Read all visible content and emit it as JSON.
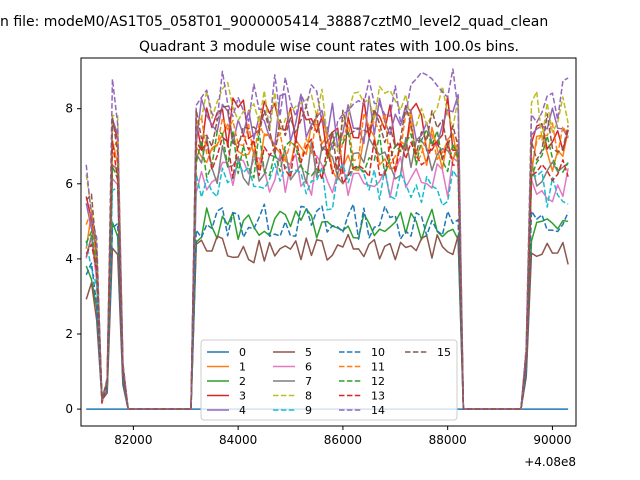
{
  "chart_data": {
    "type": "line",
    "suptitle": "n file: modeM0/AS1T05_058T01_9000005414_38887cztM0_level2_quad_clean",
    "title": "Quadrant 3 module wise count rates with 100.0s bins.",
    "xlabel": "",
    "ylabel": "",
    "xlim": [
      81000,
      90450
    ],
    "ylim": [
      -0.45,
      9.35
    ],
    "x_offset_label": "+4.08e8",
    "x_ticks": [
      82000,
      84000,
      86000,
      88000,
      90000
    ],
    "x_tick_labels": [
      "82000",
      "84000",
      "86000",
      "88000",
      "90000"
    ],
    "y_ticks": [
      0,
      2,
      4,
      6,
      8
    ],
    "y_tick_labels": [
      "0",
      "2",
      "4",
      "6",
      "8"
    ],
    "grid": false,
    "legend_position": "lower center",
    "legend_columns": 4,
    "segments": [
      {
        "start": 81100,
        "end": 81900,
        "on_start": 81100,
        "on_end": 81800,
        "dips": [
          81400
        ]
      },
      {
        "start": 81900,
        "end": 83200,
        "off": true
      },
      {
        "start": 83200,
        "end": 88200,
        "on_start": 83200,
        "on_end": 88200
      },
      {
        "start": 88200,
        "end": 89400,
        "off": true
      },
      {
        "start": 89400,
        "end": 90300,
        "on_start": 89500,
        "on_end": 90300
      }
    ],
    "series": [
      {
        "name": "0",
        "color": "#1f77b4",
        "dash": "solid",
        "level": 0.0
      },
      {
        "name": "1",
        "color": "#ff7f0e",
        "dash": "solid",
        "level": 7.0
      },
      {
        "name": "2",
        "color": "#2ca02c",
        "dash": "solid",
        "level": 4.9
      },
      {
        "name": "3",
        "color": "#d62728",
        "dash": "solid",
        "level": 7.6
      },
      {
        "name": "4",
        "color": "#9467bd",
        "dash": "solid",
        "level": 7.7
      },
      {
        "name": "5",
        "color": "#8c564b",
        "dash": "solid",
        "level": 4.3
      },
      {
        "name": "6",
        "color": "#e377c2",
        "dash": "solid",
        "level": 6.2
      },
      {
        "name": "7",
        "color": "#7f7f7f",
        "dash": "solid",
        "level": 6.6
      },
      {
        "name": "8",
        "color": "#bcbd22",
        "dash": "dashed",
        "level": 8.0
      },
      {
        "name": "9",
        "color": "#17becf",
        "dash": "dashed",
        "level": 6.0
      },
      {
        "name": "10",
        "color": "#1f77b4",
        "dash": "dashed",
        "level": 5.0
      },
      {
        "name": "11",
        "color": "#ff7f0e",
        "dash": "dashed",
        "level": 7.2
      },
      {
        "name": "12",
        "color": "#2ca02c",
        "dash": "dashed",
        "level": 6.8
      },
      {
        "name": "13",
        "color": "#d62728",
        "dash": "dashed",
        "level": 6.7
      },
      {
        "name": "14",
        "color": "#9467bd",
        "dash": "dashed",
        "level": 8.3
      },
      {
        "name": "15",
        "color": "#8c564b",
        "dash": "dashed",
        "level": 7.4
      }
    ]
  }
}
